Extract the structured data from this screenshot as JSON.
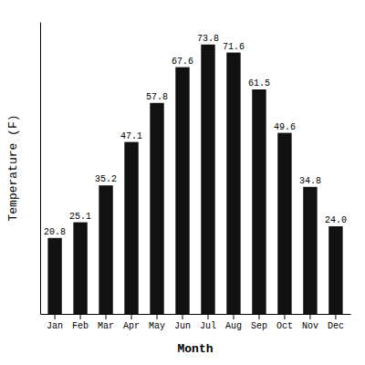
{
  "chart_data": {
    "type": "bar",
    "categories": [
      "Jan",
      "Feb",
      "Mar",
      "Apr",
      "May",
      "Jun",
      "Jul",
      "Aug",
      "Sep",
      "Oct",
      "Nov",
      "Dec"
    ],
    "values": [
      20.8,
      25.1,
      35.2,
      47.1,
      57.8,
      67.6,
      73.8,
      71.6,
      61.5,
      49.6,
      34.8,
      24.0
    ],
    "value_labels": [
      "20.8",
      "25.1",
      "35.2",
      "47.1",
      "57.8",
      "67.6",
      "73.8",
      "71.6",
      "61.5",
      "49.6",
      "34.8",
      "24.0"
    ],
    "color": "#111111",
    "xlabel": "Month",
    "ylabel": "Temperature (F)",
    "ylim": [
      0,
      80
    ],
    "yticks": [],
    "data_labels": true,
    "tick_labels": "x"
  }
}
